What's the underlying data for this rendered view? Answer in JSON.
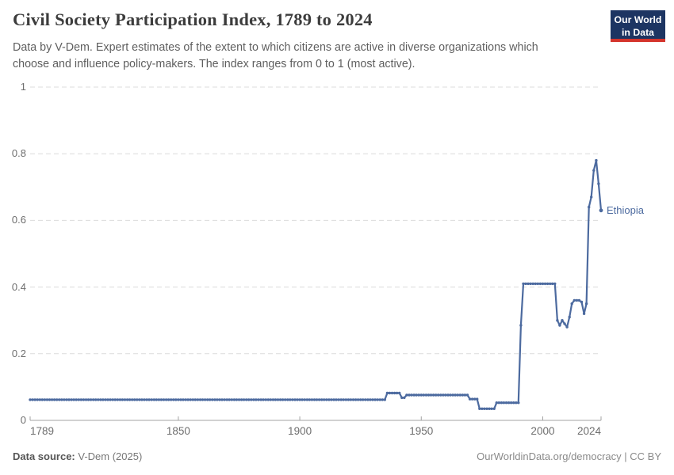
{
  "header": {
    "title": "Civil Society Participation Index, 1789 to 2024",
    "subtitle": [
      "Data by V-Dem. Expert estimates of the extent to which citizens are active in diverse organizations which",
      "choose and influence policy-makers. The index ranges from 0 to 1 (most active)."
    ],
    "logo": {
      "line1": "Our World",
      "line2": "in Data",
      "bg_color": "#1d3562",
      "stripe_color": "#d4342c"
    }
  },
  "footer": {
    "source_label": "Data source:",
    "source_value": " V-Dem (2025)",
    "link": "OurWorldinData.org/democracy",
    "separator": " | ",
    "license": "CC BY"
  },
  "chart_data": {
    "type": "line",
    "title": "Civil Society Participation Index, 1789 to 2024",
    "entity": "Ethiopia",
    "line_color": "#4c6a9f",
    "grid": true,
    "grid_color": "#dcdcdc",
    "axis_color": "#a3a3a3",
    "x": {
      "min": 1789,
      "max": 2024,
      "ticks": [
        1789,
        1850,
        1900,
        1950,
        2000,
        2024
      ]
    },
    "y": {
      "min": 0,
      "max": 1,
      "ticks": [
        0,
        0.2,
        0.4,
        0.6,
        0.8,
        1
      ]
    },
    "series": [
      {
        "name": "Ethiopia",
        "runs_from_to_value": [
          [
            1789,
            1935,
            0.062
          ],
          [
            1936,
            1941,
            0.082
          ],
          [
            1942,
            1943,
            0.068
          ],
          [
            1944,
            1969,
            0.076
          ],
          [
            1970,
            1973,
            0.064
          ],
          [
            1974,
            1980,
            0.035
          ],
          [
            1981,
            1990,
            0.053
          ],
          [
            1991,
            1991,
            0.285
          ],
          [
            1992,
            2005,
            0.41
          ],
          [
            2006,
            2006,
            0.3
          ],
          [
            2007,
            2007,
            0.285
          ],
          [
            2008,
            2008,
            0.3
          ],
          [
            2009,
            2009,
            0.29
          ],
          [
            2010,
            2010,
            0.28
          ],
          [
            2011,
            2011,
            0.31
          ],
          [
            2012,
            2012,
            0.35
          ],
          [
            2013,
            2013,
            0.36
          ],
          [
            2014,
            2014,
            0.36
          ],
          [
            2015,
            2015,
            0.36
          ],
          [
            2016,
            2016,
            0.355
          ],
          [
            2017,
            2017,
            0.32
          ],
          [
            2018,
            2018,
            0.35
          ],
          [
            2019,
            2019,
            0.64
          ],
          [
            2020,
            2020,
            0.67
          ],
          [
            2021,
            2021,
            0.75
          ],
          [
            2022,
            2022,
            0.78
          ],
          [
            2023,
            2023,
            0.71
          ],
          [
            2024,
            2024,
            0.63
          ]
        ]
      }
    ]
  }
}
